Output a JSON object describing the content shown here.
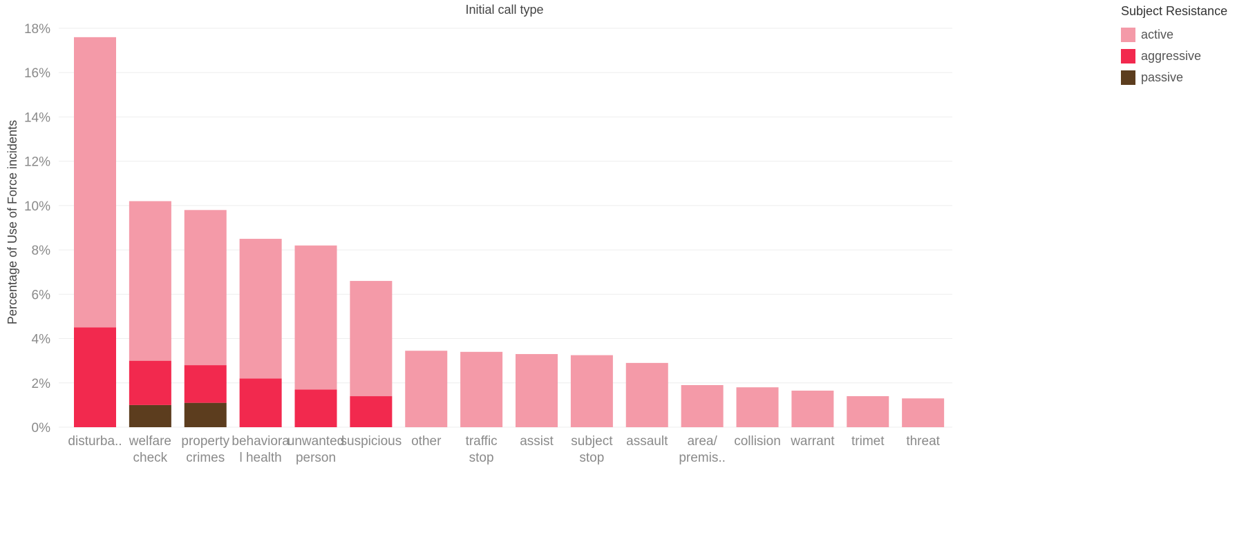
{
  "chart_data": {
    "type": "bar",
    "stacked": true,
    "title": "Initial call type",
    "xlabel": "",
    "ylabel": "Percentage of Use of Force incidents",
    "ylim": [
      0,
      18
    ],
    "y_ticks": [
      "0%",
      "2%",
      "4%",
      "6%",
      "8%",
      "10%",
      "12%",
      "14%",
      "16%",
      "18%"
    ],
    "grid": true,
    "legend_position": "top-right",
    "legend_title": "Subject Resistance",
    "categories": [
      [
        "disturba.."
      ],
      [
        "welfare",
        "check"
      ],
      [
        "property",
        "crimes"
      ],
      [
        "behaviora",
        "l health"
      ],
      [
        "unwanted",
        "person"
      ],
      [
        "suspicious"
      ],
      [
        "other"
      ],
      [
        "traffic",
        "stop"
      ],
      [
        "assist"
      ],
      [
        "subject",
        "stop"
      ],
      [
        "assault"
      ],
      [
        "area/",
        "premis.."
      ],
      [
        "collision"
      ],
      [
        "warrant"
      ],
      [
        "trimet"
      ],
      [
        "threat"
      ]
    ],
    "series": [
      {
        "name": "passive",
        "color": "#5c3d1e",
        "values": [
          0,
          1.0,
          1.1,
          0,
          0,
          0,
          0,
          0,
          0,
          0,
          0,
          0,
          0,
          0,
          0,
          0
        ]
      },
      {
        "name": "aggressive",
        "color": "#f2294e",
        "values": [
          4.5,
          2.0,
          1.7,
          2.2,
          1.7,
          1.4,
          0,
          0,
          0,
          0,
          0,
          0,
          0,
          0,
          0,
          0
        ]
      },
      {
        "name": "active",
        "color": "#f49aa8",
        "values": [
          13.1,
          7.2,
          7.0,
          6.3,
          6.5,
          5.2,
          3.45,
          3.4,
          3.3,
          3.25,
          2.9,
          1.9,
          1.8,
          1.65,
          1.4,
          1.3
        ]
      }
    ],
    "legend_order": [
      "active",
      "aggressive",
      "passive"
    ]
  }
}
